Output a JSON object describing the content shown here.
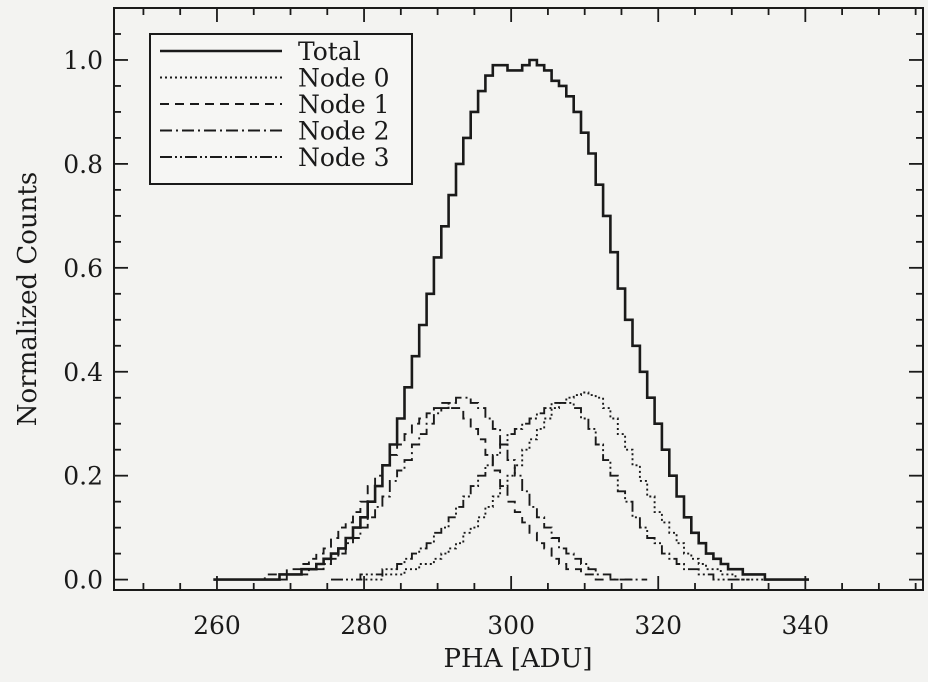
{
  "chart_data": {
    "type": "line",
    "title": "",
    "xlabel": "PHA [ADU]",
    "ylabel": "Normalized Counts",
    "xlim": [
      246,
      356
    ],
    "ylim": [
      -0.02,
      1.1
    ],
    "x_ticks": [
      {
        "value": 260,
        "label": "260"
      },
      {
        "value": 280,
        "label": "280"
      },
      {
        "value": 300,
        "label": "300"
      },
      {
        "value": 320,
        "label": "320"
      },
      {
        "value": 340,
        "label": "340"
      }
    ],
    "y_ticks": [
      {
        "value": 0.0,
        "label": "0.0"
      },
      {
        "value": 0.2,
        "label": "0.2"
      },
      {
        "value": 0.4,
        "label": "0.4"
      },
      {
        "value": 0.6,
        "label": "0.6"
      },
      {
        "value": 0.8,
        "label": "0.8"
      },
      {
        "value": 1.0,
        "label": "1.0"
      }
    ],
    "x_minor_step": 5,
    "y_minor_step": 0.05,
    "grid": false,
    "legend_position": "top-left",
    "step_style": "histogram",
    "x_step": 1,
    "series": [
      {
        "name": "Total",
        "dash": "solid",
        "x_start": 260,
        "values": [
          0.0,
          0.0,
          0.0,
          0.0,
          0.0,
          0.0,
          0.0,
          0.0,
          0.0,
          0.01,
          0.01,
          0.01,
          0.02,
          0.02,
          0.03,
          0.04,
          0.05,
          0.06,
          0.08,
          0.1,
          0.12,
          0.15,
          0.18,
          0.22,
          0.26,
          0.31,
          0.37,
          0.43,
          0.49,
          0.55,
          0.62,
          0.68,
          0.74,
          0.8,
          0.85,
          0.9,
          0.94,
          0.97,
          0.99,
          0.99,
          0.98,
          0.98,
          0.99,
          1.0,
          0.99,
          0.98,
          0.96,
          0.95,
          0.93,
          0.9,
          0.86,
          0.82,
          0.76,
          0.7,
          0.63,
          0.56,
          0.5,
          0.45,
          0.4,
          0.35,
          0.3,
          0.25,
          0.2,
          0.16,
          0.12,
          0.09,
          0.07,
          0.05,
          0.04,
          0.03,
          0.02,
          0.02,
          0.01,
          0.01,
          0.01,
          0.0,
          0.0,
          0.0,
          0.0,
          0.0,
          0.0
        ]
      },
      {
        "name": "Node 0",
        "dash": "dotted",
        "x_start": 280,
        "values": [
          0.0,
          0.0,
          0.0,
          0.01,
          0.01,
          0.01,
          0.02,
          0.02,
          0.03,
          0.03,
          0.04,
          0.05,
          0.06,
          0.07,
          0.09,
          0.1,
          0.12,
          0.14,
          0.16,
          0.18,
          0.2,
          0.22,
          0.25,
          0.27,
          0.29,
          0.31,
          0.33,
          0.34,
          0.35,
          0.355,
          0.36,
          0.355,
          0.35,
          0.33,
          0.31,
          0.28,
          0.25,
          0.22,
          0.19,
          0.16,
          0.13,
          0.11,
          0.09,
          0.07,
          0.05,
          0.04,
          0.03,
          0.02,
          0.02,
          0.01,
          0.01,
          0.0,
          0.0,
          0.0,
          0.0,
          0.0
        ]
      },
      {
        "name": "Node 1",
        "dash": "dashed",
        "x_start": 262,
        "values": [
          0.0,
          0.0,
          0.0,
          0.0,
          0.0,
          0.01,
          0.01,
          0.01,
          0.02,
          0.02,
          0.03,
          0.04,
          0.05,
          0.06,
          0.08,
          0.1,
          0.11,
          0.13,
          0.15,
          0.18,
          0.2,
          0.22,
          0.24,
          0.26,
          0.28,
          0.3,
          0.31,
          0.32,
          0.33,
          0.34,
          0.33,
          0.33,
          0.31,
          0.29,
          0.27,
          0.24,
          0.21,
          0.18,
          0.15,
          0.13,
          0.11,
          0.09,
          0.07,
          0.06,
          0.04,
          0.03,
          0.02,
          0.02,
          0.01,
          0.01,
          0.0,
          0.0,
          0.0,
          0.0,
          0.0
        ]
      },
      {
        "name": "Node 2",
        "dash": "dash-dot",
        "x_start": 266,
        "values": [
          0.0,
          0.0,
          0.0,
          0.0,
          0.01,
          0.01,
          0.01,
          0.02,
          0.02,
          0.03,
          0.04,
          0.05,
          0.07,
          0.08,
          0.1,
          0.12,
          0.14,
          0.16,
          0.19,
          0.21,
          0.23,
          0.26,
          0.28,
          0.3,
          0.32,
          0.33,
          0.34,
          0.35,
          0.35,
          0.34,
          0.33,
          0.31,
          0.29,
          0.26,
          0.23,
          0.2,
          0.17,
          0.14,
          0.12,
          0.1,
          0.08,
          0.06,
          0.05,
          0.04,
          0.03,
          0.02,
          0.01,
          0.01,
          0.0,
          0.0,
          0.0,
          0.0,
          0.0
        ]
      },
      {
        "name": "Node 3",
        "dash": "dash-dot-dot",
        "x_start": 276,
        "values": [
          0.0,
          0.0,
          0.0,
          0.0,
          0.01,
          0.01,
          0.01,
          0.02,
          0.02,
          0.03,
          0.04,
          0.05,
          0.06,
          0.07,
          0.09,
          0.1,
          0.12,
          0.14,
          0.16,
          0.18,
          0.2,
          0.22,
          0.24,
          0.26,
          0.28,
          0.29,
          0.3,
          0.31,
          0.32,
          0.33,
          0.34,
          0.34,
          0.34,
          0.33,
          0.31,
          0.29,
          0.26,
          0.23,
          0.2,
          0.17,
          0.15,
          0.12,
          0.1,
          0.08,
          0.07,
          0.05,
          0.04,
          0.03,
          0.02,
          0.02,
          0.01,
          0.01,
          0.0,
          0.0,
          0.0,
          0.0,
          0.0
        ]
      }
    ]
  }
}
